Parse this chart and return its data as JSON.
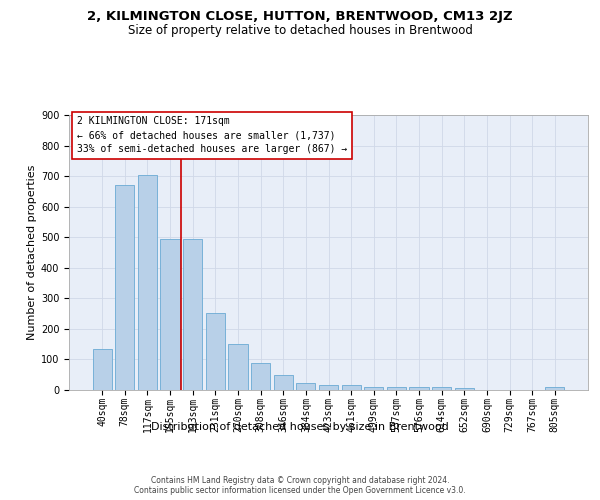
{
  "title": "2, KILMINGTON CLOSE, HUTTON, BRENTWOOD, CM13 2JZ",
  "subtitle": "Size of property relative to detached houses in Brentwood",
  "xlabel": "Distribution of detached houses by size in Brentwood",
  "ylabel": "Number of detached properties",
  "categories": [
    "40sqm",
    "78sqm",
    "117sqm",
    "155sqm",
    "193sqm",
    "231sqm",
    "270sqm",
    "308sqm",
    "346sqm",
    "384sqm",
    "423sqm",
    "461sqm",
    "499sqm",
    "537sqm",
    "576sqm",
    "614sqm",
    "652sqm",
    "690sqm",
    "729sqm",
    "767sqm",
    "805sqm"
  ],
  "values": [
    135,
    672,
    705,
    493,
    493,
    253,
    150,
    87,
    50,
    22,
    18,
    18,
    10,
    10,
    10,
    10,
    7,
    0,
    0,
    0,
    10
  ],
  "bar_color": "#b8d0e8",
  "bar_edge_color": "#6aaad4",
  "grid_color": "#d0d8e8",
  "background_color": "#ffffff",
  "plot_bg_color": "#e8eef8",
  "annotation_text": "2 KILMINGTON CLOSE: 171sqm\n← 66% of detached houses are smaller (1,737)\n33% of semi-detached houses are larger (867) →",
  "annotation_box_color": "#ffffff",
  "annotation_border_color": "#cc0000",
  "property_line_color": "#cc0000",
  "red_line_x": 3.5,
  "ylim": [
    0,
    900
  ],
  "yticks": [
    0,
    100,
    200,
    300,
    400,
    500,
    600,
    700,
    800,
    900
  ],
  "footer": "Contains HM Land Registry data © Crown copyright and database right 2024.\nContains public sector information licensed under the Open Government Licence v3.0.",
  "title_fontsize": 9.5,
  "subtitle_fontsize": 8.5,
  "ylabel_fontsize": 8,
  "xlabel_fontsize": 8,
  "tick_fontsize": 7,
  "annotation_fontsize": 7,
  "footer_fontsize": 5.5
}
